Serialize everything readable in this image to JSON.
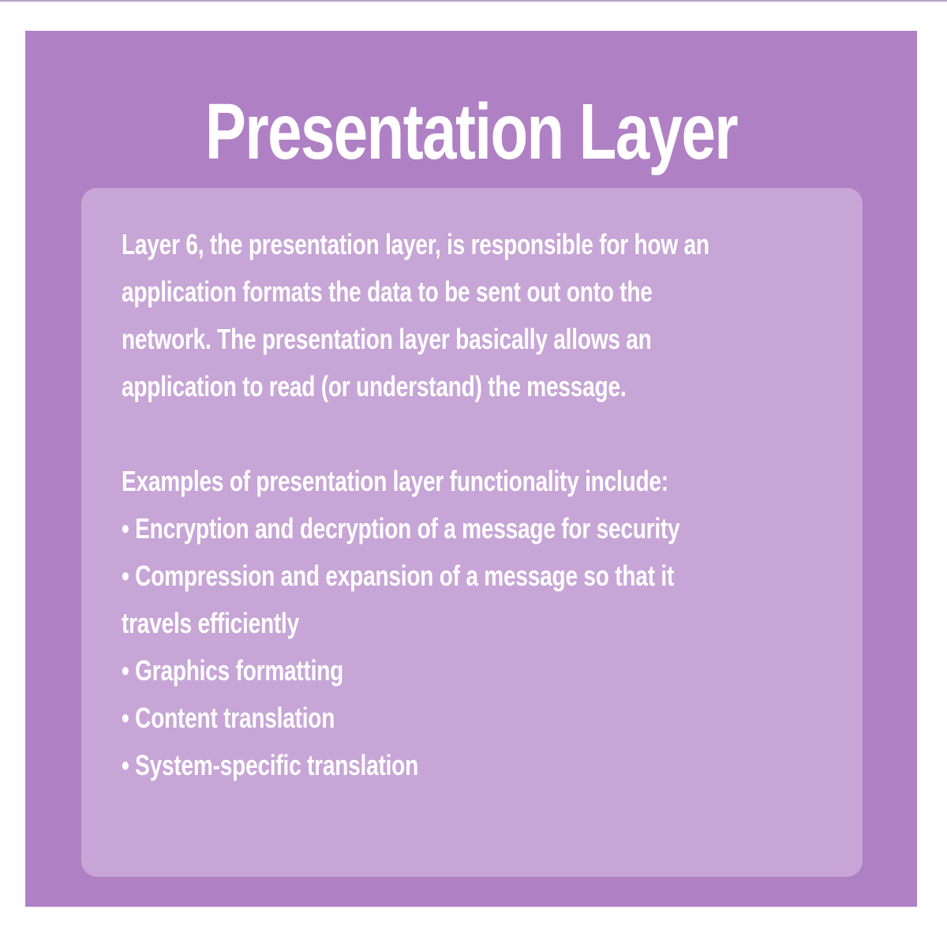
{
  "title": "Presentation Layer",
  "paragraph_lines": [
    "Layer 6, the presentation layer, is responsible for how an",
    "application formats the data to be sent out onto the",
    "network. The presentation layer basically allows an",
    "application to read (or understand) the message."
  ],
  "examples_heading": "Examples of presentation layer functionality include:",
  "example_lines": [
    "• Encryption and decryption of a message for security",
    "• Compression and expansion of a message so that it",
    "travels efficiently",
    "• Graphics formatting",
    "• Content translation",
    "• System-specific translation"
  ],
  "colors": {
    "card_background": "#b080c4",
    "panel_background": "#c7a5d6",
    "text": "#ffffff"
  }
}
